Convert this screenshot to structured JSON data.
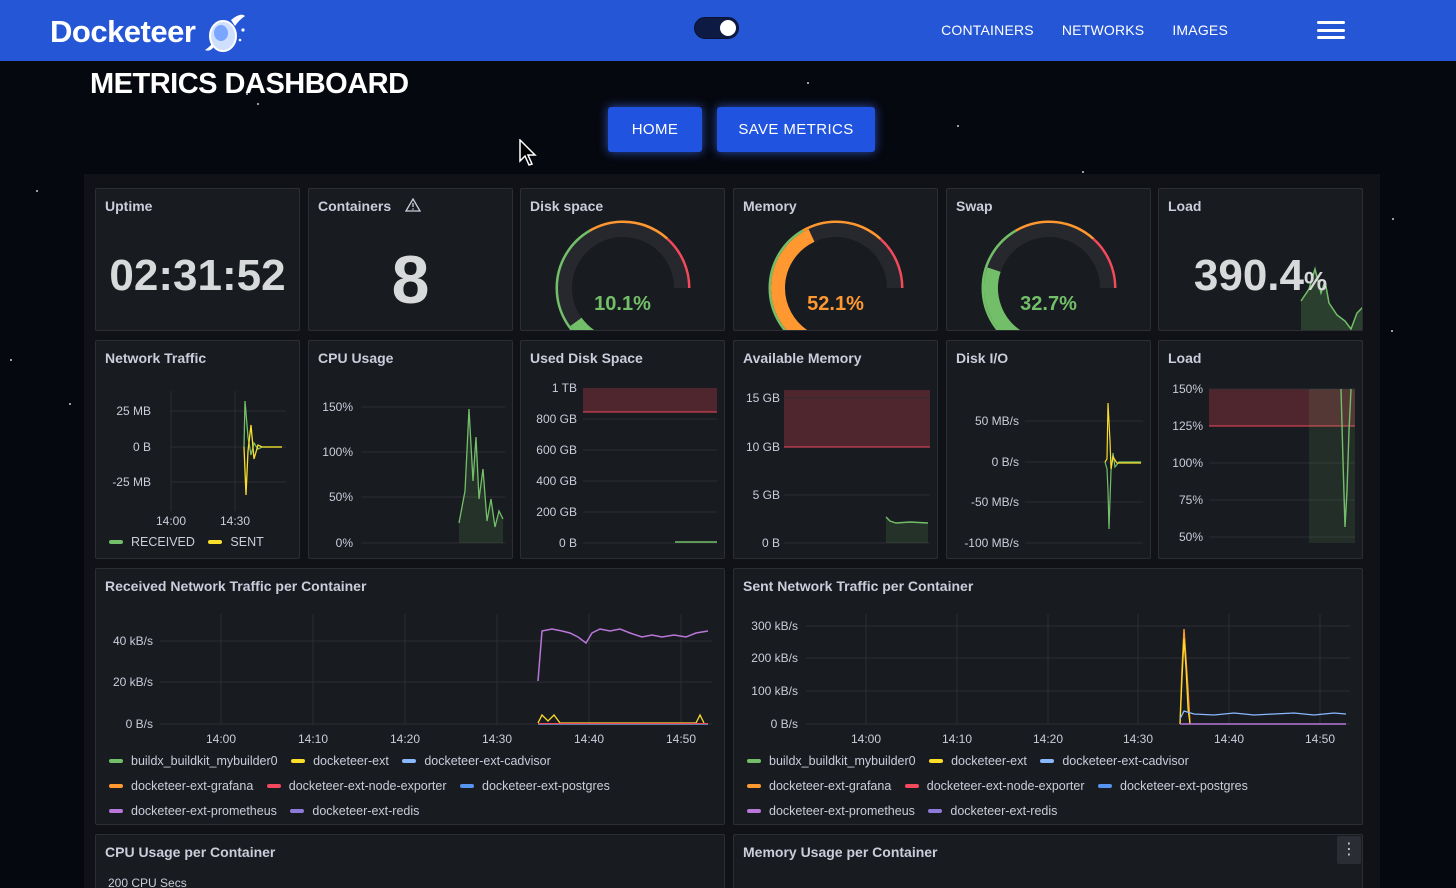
{
  "navbar": {
    "brand": "Docketeer",
    "links": [
      "CONTAINERS",
      "NETWORKS",
      "IMAGES"
    ]
  },
  "header": {
    "title": "METRICS DASHBOARD",
    "home_label": "HOME",
    "save_label": "SAVE METRICS"
  },
  "colors": {
    "navbar": "#2556d6",
    "green": "#73bf69",
    "yellow": "#fade2a",
    "blue": "#8ab8ff",
    "orange": "#ff9830",
    "red": "#f2495c",
    "blue2": "#5794f2",
    "purple": "#b877d9",
    "violet": "#8f7ad9"
  },
  "stats": {
    "uptime": {
      "title": "Uptime",
      "value": "02:31:52"
    },
    "containers": {
      "title": "Containers",
      "value": "8"
    },
    "disk": {
      "title": "Disk space",
      "value": "10.1%",
      "fraction": 0.101
    },
    "memory": {
      "title": "Memory",
      "value": "52.1%",
      "fraction": 0.521
    },
    "swap": {
      "title": "Swap",
      "value": "32.7%",
      "fraction": 0.327
    },
    "load": {
      "title": "Load",
      "value": "390.4",
      "unit": "%"
    }
  },
  "charts": {
    "network": {
      "title": "Network Traffic",
      "yticks": [
        "25 MB",
        "0 B",
        "-25 MB"
      ],
      "xticks": [
        "14:00",
        "14:30"
      ],
      "legend": [
        "RECEIVED",
        "SENT"
      ]
    },
    "cpu": {
      "title": "CPU Usage",
      "yticks": [
        "150%",
        "100%",
        "50%",
        "0%"
      ]
    },
    "used_disk": {
      "title": "Used Disk Space",
      "yticks": [
        "1 TB",
        "800 GB",
        "600 GB",
        "400 GB",
        "200 GB",
        "0 B"
      ]
    },
    "avail_mem": {
      "title": "Available Memory",
      "yticks": [
        "15 GB",
        "10 GB",
        "5 GB",
        "0 B"
      ]
    },
    "disk_io": {
      "title": "Disk I/O",
      "yticks": [
        "50 MB/s",
        "0 B/s",
        "-50 MB/s",
        "-100 MB/s"
      ]
    },
    "load": {
      "title": "Load",
      "yticks": [
        "150%",
        "125%",
        "100%",
        "75%",
        "50%"
      ]
    },
    "received": {
      "title": "Received Network Traffic per Container",
      "yticks": [
        "40 kB/s",
        "20 kB/s",
        "0 B/s"
      ],
      "xticks": [
        "14:00",
        "14:10",
        "14:20",
        "14:30",
        "14:40",
        "14:50"
      ]
    },
    "sent": {
      "title": "Sent Network Traffic per Container",
      "yticks": [
        "300 kB/s",
        "200 kB/s",
        "100 kB/s",
        "0 B/s"
      ],
      "xticks": [
        "14:00",
        "14:10",
        "14:20",
        "14:30",
        "14:40",
        "14:50"
      ]
    },
    "cpu_per_container": {
      "title": "CPU Usage per Container",
      "ytick": "200 CPU Secs"
    },
    "mem_per_container": {
      "title": "Memory Usage per Container"
    }
  },
  "container_legend": [
    "buildx_buildkit_mybuilder0",
    "docketeer-ext",
    "docketeer-ext-cadvisor",
    "docketeer-ext-grafana",
    "docketeer-ext-node-exporter",
    "docketeer-ext-postgres",
    "docketeer-ext-prometheus",
    "docketeer-ext-redis"
  ]
}
